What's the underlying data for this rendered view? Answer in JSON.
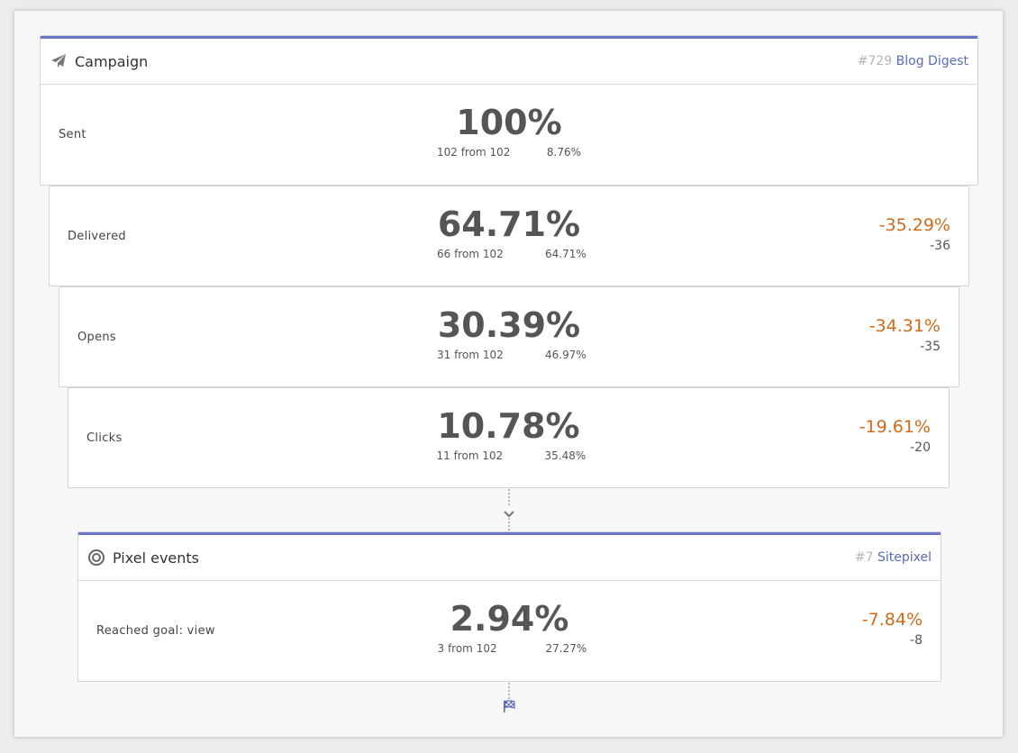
{
  "campaign": {
    "title": "Campaign",
    "icon": "paper-plane-icon",
    "ref_number": "#729",
    "ref_name": "Blog Digest",
    "accent": "#6a74c4"
  },
  "stages": [
    {
      "label": "Sent",
      "percent": "100%",
      "from": "102 from 102",
      "relative": "8.76%",
      "delta_pct": "",
      "delta_abs": ""
    },
    {
      "label": "Delivered",
      "percent": "64.71%",
      "from": "66 from 102",
      "relative": "64.71%",
      "delta_pct": "-35.29%",
      "delta_abs": "-36"
    },
    {
      "label": "Opens",
      "percent": "30.39%",
      "from": "31 from 102",
      "relative": "46.97%",
      "delta_pct": "-34.31%",
      "delta_abs": "-35"
    },
    {
      "label": "Clicks",
      "percent": "10.78%",
      "from": "11 from 102",
      "relative": "35.48%",
      "delta_pct": "-19.61%",
      "delta_abs": "-20"
    }
  ],
  "pixel": {
    "title": "Pixel events",
    "icon": "target-icon",
    "ref_number": "#7",
    "ref_name": "Sitepixel",
    "goal": {
      "label": "Reached goal: view",
      "percent": "2.94%",
      "from": "3 from 102",
      "relative": "27.27%",
      "delta_pct": "-7.84%",
      "delta_abs": "-8"
    }
  },
  "colors": {
    "negative": "#d06a1c",
    "link": "#5b6bb8"
  }
}
